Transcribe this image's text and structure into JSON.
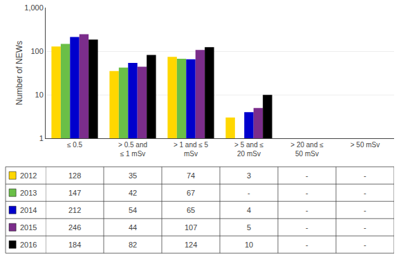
{
  "chart_data": {
    "type": "bar",
    "categories": [
      "≤ 0.5",
      "> 0.5 and\n≤ 1 mSv",
      "> 1 and ≤ 5\nmSv",
      "> 5 and ≤\n20 mSv",
      "> 20 and ≤\n50 mSv",
      "> 50 mSv"
    ],
    "series": [
      {
        "name": "2012",
        "color": "#FFD700",
        "values": [
          128,
          35,
          74,
          3,
          null,
          null
        ],
        "value_labels": [
          "128",
          "35",
          "74",
          "3",
          "-",
          "-"
        ]
      },
      {
        "name": "2013",
        "color": "#6ABF47",
        "values": [
          147,
          42,
          67,
          null,
          null,
          null
        ],
        "value_labels": [
          "147",
          "42",
          "67",
          "-",
          "-",
          "-"
        ]
      },
      {
        "name": "2014",
        "color": "#0000CD",
        "values": [
          212,
          54,
          65,
          4,
          null,
          null
        ],
        "value_labels": [
          "212",
          "54",
          "65",
          "4",
          "-",
          "-"
        ]
      },
      {
        "name": "2015",
        "color": "#7B2D8B",
        "values": [
          246,
          44,
          107,
          5,
          null,
          null
        ],
        "value_labels": [
          "246",
          "44",
          "107",
          "5",
          "-",
          "-"
        ]
      },
      {
        "name": "2016",
        "color": "#000000",
        "values": [
          184,
          82,
          124,
          10,
          null,
          null
        ],
        "value_labels": [
          "184",
          "82",
          "124",
          "10",
          "-",
          "-"
        ]
      }
    ],
    "y_label": "Number of NEWs",
    "log": "y",
    "ylim": [
      1,
      1000
    ],
    "yticks": [
      1,
      10,
      100,
      {
        "value": 1000,
        "label": "1,000"
      }
    ],
    "grid": true
  }
}
